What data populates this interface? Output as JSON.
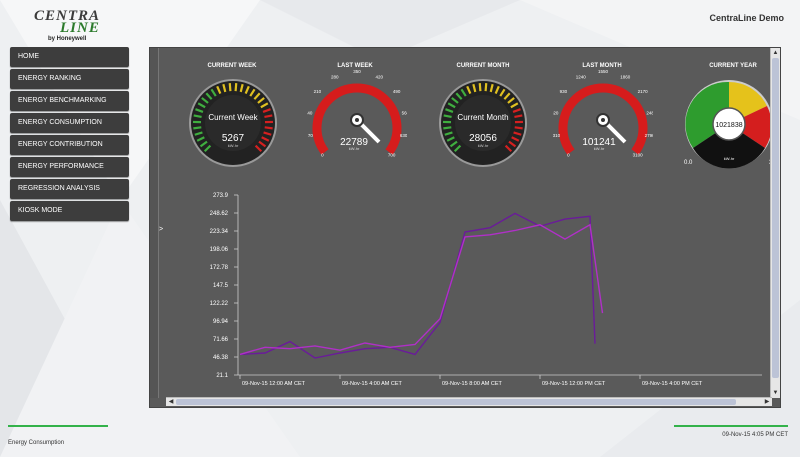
{
  "header": {
    "logo_text": "CENTRALINE",
    "logo_sub": "by Honeywell",
    "app_title": "CentraLine Demo"
  },
  "sidebar": {
    "items": [
      {
        "label": "HOME"
      },
      {
        "label": "ENERGY RANKING"
      },
      {
        "label": "ENERGY BENCHMARKING"
      },
      {
        "label": "ENERGY CONSUMPTION"
      },
      {
        "label": "ENERGY CONTRIBUTION"
      },
      {
        "label": "ENERGY PERFORMANCE"
      },
      {
        "label": "REGRESSION ANALYSIS"
      },
      {
        "label": "KIOSK MODE"
      }
    ]
  },
  "gauges": [
    {
      "title": "CURRENT WEEK",
      "center_label": "Current Week",
      "value": "5267",
      "unit": "kW-hr",
      "style": "bar"
    },
    {
      "title": "LAST WEEK",
      "value": "22789",
      "unit": "kW-hr",
      "style": "needle",
      "ticks": [
        "0",
        "70",
        "140",
        "210",
        "280",
        "350",
        "420",
        "490",
        "560",
        "630",
        "700"
      ]
    },
    {
      "title": "CURRENT MONTH",
      "center_label": "Current Month",
      "value": "28056",
      "unit": "kW-hr",
      "style": "bar"
    },
    {
      "title": "LAST MONTH",
      "value": "101241",
      "unit": "kW-hr",
      "style": "needle",
      "ticks": [
        "0",
        "310",
        "620",
        "930",
        "1240",
        "1550",
        "1860",
        "2170",
        "2480",
        "2790",
        "3100"
      ]
    },
    {
      "title": "CURRENT YEAR",
      "value": "1021838",
      "unit": "kW-hr",
      "style": "dial",
      "ticks": [
        "0.0",
        "3"
      ]
    }
  ],
  "chart_data": {
    "type": "line",
    "title": "",
    "xlabel": "",
    "ylabel": "",
    "ylim": [
      21.1,
      273.9
    ],
    "y_ticks": [
      "273.9",
      "248.62",
      "223.34",
      "198.06",
      "172.78",
      "147.5",
      "122.22",
      "96.94",
      "71.66",
      "46.38",
      "21.1"
    ],
    "x_ticks": [
      "09-Nov-15 12:00 AM CET",
      "09-Nov-15 4:00 AM CET",
      "09-Nov-15 8:00 AM CET",
      "09-Nov-15 12:00 PM CET",
      "09-Nov-15 4:00 PM CET",
      "10-Nov-15 12:00 AM CET"
    ],
    "x_hours": [
      0,
      4,
      8,
      12,
      16,
      24
    ],
    "series": [
      {
        "color": "#6a1b9a",
        "x": [
          0,
          1,
          2,
          3,
          4,
          5,
          6,
          7,
          8,
          9,
          10,
          11,
          12,
          13,
          14,
          14.2
        ],
        "values": [
          50,
          52,
          68,
          45,
          52,
          58,
          60,
          50,
          95,
          222,
          228,
          248,
          230,
          240,
          244,
          65
        ]
      },
      {
        "color": "#b030c8",
        "x": [
          0,
          1,
          2,
          3,
          4,
          5,
          6,
          7,
          8,
          9,
          10,
          11,
          12,
          13,
          14,
          14.5
        ],
        "values": [
          50,
          60,
          58,
          62,
          56,
          66,
          60,
          64,
          100,
          215,
          218,
          224,
          232,
          212,
          232,
          108
        ]
      }
    ]
  },
  "footer": {
    "left_label": "Energy Consumption",
    "timestamp": "09-Nov-15 4:05 PM CET"
  }
}
